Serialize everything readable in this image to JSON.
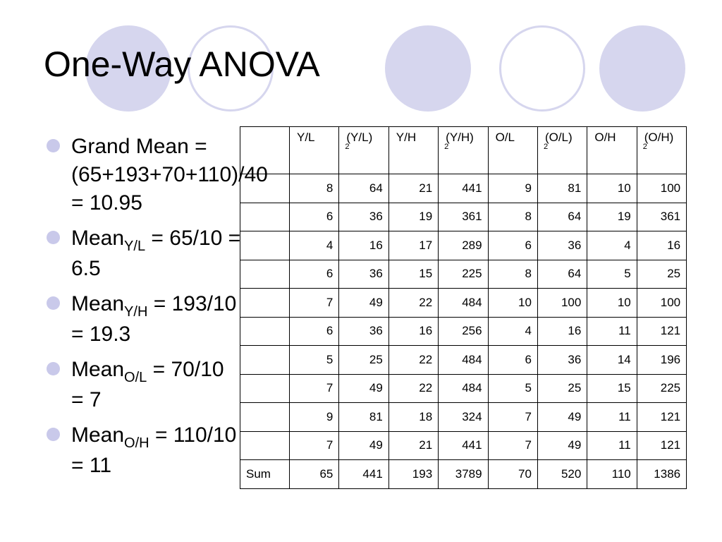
{
  "title": "One-Way ANOVA",
  "bullets": [
    {
      "text": "Grand Mean = (65+193+70+110)/40 = 10.95"
    },
    {
      "main": "Mean",
      "sub": "Y/L",
      "rest": " = 65/10 = 6.5"
    },
    {
      "main": "Mean",
      "sub": "Y/H",
      "rest": " = 193/10 = 19.3"
    },
    {
      "main": "Mean",
      "sub": "O/L",
      "rest": " = 70/10 = 7"
    },
    {
      "main": "Mean",
      "sub": "O/H",
      "rest": " = 110/10 = 11"
    }
  ],
  "table": {
    "headers": [
      {
        "label": "",
        "sup": ""
      },
      {
        "label": "Y/L",
        "sup": ""
      },
      {
        "label": "(Y/L)",
        "sup": "2"
      },
      {
        "label": "Y/H",
        "sup": ""
      },
      {
        "label": "(Y/H)",
        "sup": "2"
      },
      {
        "label": "O/L",
        "sup": ""
      },
      {
        "label": "(O/L)",
        "sup": "2"
      },
      {
        "label": "O/H",
        "sup": ""
      },
      {
        "label": "(O/H)",
        "sup": "2"
      }
    ],
    "rows": [
      [
        "",
        "8",
        "64",
        "21",
        "441",
        "9",
        "81",
        "10",
        "100"
      ],
      [
        "",
        "6",
        "36",
        "19",
        "361",
        "8",
        "64",
        "19",
        "361"
      ],
      [
        "",
        "4",
        "16",
        "17",
        "289",
        "6",
        "36",
        "4",
        "16"
      ],
      [
        "",
        "6",
        "36",
        "15",
        "225",
        "8",
        "64",
        "5",
        "25"
      ],
      [
        "",
        "7",
        "49",
        "22",
        "484",
        "10",
        "100",
        "10",
        "100"
      ],
      [
        "",
        "6",
        "36",
        "16",
        "256",
        "4",
        "16",
        "11",
        "121"
      ],
      [
        "",
        "5",
        "25",
        "22",
        "484",
        "6",
        "36",
        "14",
        "196"
      ],
      [
        "",
        "7",
        "49",
        "22",
        "484",
        "5",
        "25",
        "15",
        "225"
      ],
      [
        "",
        "9",
        "81",
        "18",
        "324",
        "7",
        "49",
        "11",
        "121"
      ],
      [
        "",
        "7",
        "49",
        "21",
        "441",
        "7",
        "49",
        "11",
        "121"
      ],
      [
        "Sum",
        "65",
        "441",
        "193",
        "3789",
        "70",
        "520",
        "110",
        "1386"
      ]
    ]
  },
  "colors": {
    "circle": "#d6d6ee",
    "bullet": "#c9c9ea"
  }
}
